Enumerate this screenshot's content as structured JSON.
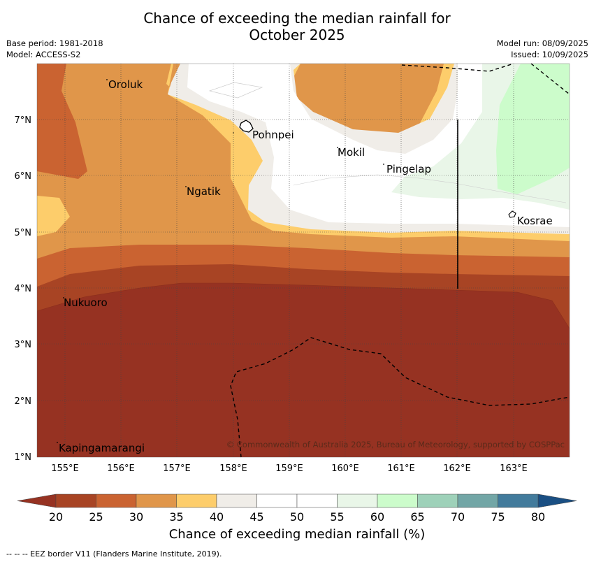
{
  "title_line1": "Chance of exceeding the median rainfall for",
  "title_line2": "October 2025",
  "meta_left": [
    "Base period: 1981-2018",
    "Model: ACCESS-S2"
  ],
  "meta_right": [
    "Model run: 08/09/2025",
    "Issued: 10/09/2025"
  ],
  "map": {
    "lon_ticks": [
      "155°E",
      "156°E",
      "157°E",
      "158°E",
      "159°E",
      "160°E",
      "161°E",
      "162°E",
      "163°E"
    ],
    "lat_ticks": [
      "7°N",
      "6°N",
      "5°N",
      "4°N",
      "3°N",
      "2°N",
      "1°N"
    ],
    "places": [
      "Oroluk",
      "Pohnpei",
      "Mokil",
      "Pingelap",
      "Ngatik",
      "Kosrae",
      "Nukuoro",
      "Kapingamarangi"
    ],
    "copyright": "© Commonwealth of Australia 2025, Bureau of Meteorology, supported by COSPPac"
  },
  "colorbar": {
    "ticks": [
      "20",
      "25",
      "30",
      "35",
      "40",
      "45",
      "50",
      "55",
      "60",
      "65",
      "70",
      "75",
      "80"
    ],
    "colors": [
      "#a84424",
      "#ca6331",
      "#e0964a",
      "#fdcd6b",
      "#f0ede8",
      "#ffffff",
      "#ffffff",
      "#e9f6e8",
      "#ccfccb",
      "#9ed1b9",
      "#72a6a6",
      "#427b9c"
    ],
    "under_color": "#963222",
    "over_color": "#1a4f83",
    "label": "Chance of exceeding median rainfall (%)"
  },
  "footnote": "--  --  -- EEZ border V11 (Flanders Marine Institute, 2019)."
}
